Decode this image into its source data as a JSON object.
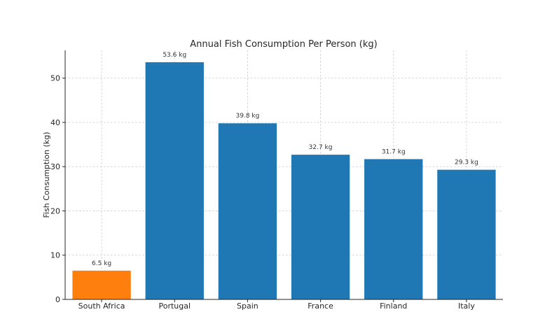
{
  "chart_data": {
    "type": "bar",
    "title": "Annual Fish Consumption Per Person (kg)",
    "xlabel": "",
    "ylabel": "Fish Consumption (kg)",
    "categories": [
      "South Africa",
      "Portugal",
      "Spain",
      "France",
      "Finland",
      "Italy"
    ],
    "values": [
      6.5,
      53.6,
      39.8,
      32.7,
      31.7,
      29.3
    ],
    "data_labels": [
      "6.5 kg",
      "53.6 kg",
      "39.8 kg",
      "32.7 kg",
      "31.7 kg",
      "29.3 kg"
    ],
    "colors": [
      "#ff7f0e",
      "#1f77b4",
      "#1f77b4",
      "#1f77b4",
      "#1f77b4",
      "#1f77b4"
    ],
    "ylim": [
      0,
      56.28
    ],
    "yticks": [
      0,
      10,
      20,
      30,
      40,
      50
    ],
    "grid": true,
    "legend": "none"
  }
}
